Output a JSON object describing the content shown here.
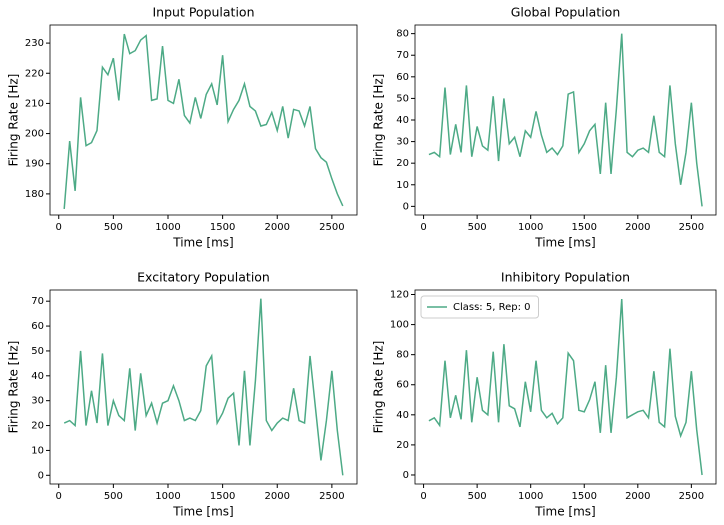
{
  "chart_data": [
    {
      "type": "line",
      "title": "Input Population",
      "xlabel": "Time [ms]",
      "ylabel": "Firing Rate [Hz]",
      "color": "#4daa86",
      "x": [
        50,
        100,
        150,
        200,
        250,
        300,
        350,
        400,
        450,
        500,
        550,
        600,
        650,
        700,
        750,
        800,
        850,
        900,
        950,
        1000,
        1050,
        1100,
        1150,
        1200,
        1250,
        1300,
        1350,
        1400,
        1450,
        1500,
        1550,
        1600,
        1650,
        1700,
        1750,
        1800,
        1850,
        1900,
        1950,
        2000,
        2050,
        2100,
        2150,
        2200,
        2250,
        2300,
        2350,
        2400,
        2450,
        2500,
        2550,
        2600
      ],
      "values": [
        175,
        197.5,
        181,
        212,
        196,
        197,
        201,
        222,
        219.5,
        225,
        211,
        233,
        226.5,
        227.5,
        231,
        232.5,
        211,
        211.5,
        229,
        211,
        210,
        218,
        206,
        203.5,
        212,
        205,
        213,
        216.5,
        209.5,
        226,
        204,
        208,
        211,
        216.5,
        209,
        207.5,
        202.5,
        203,
        207,
        201,
        209,
        198.5,
        208,
        207.5,
        202.5,
        209,
        195,
        192,
        190.5,
        185,
        180,
        176
      ],
      "xlim": [
        -80,
        2730
      ],
      "xticks": [
        0,
        500,
        1000,
        1500,
        2000,
        2500
      ],
      "ylim": [
        173,
        236
      ],
      "yticks": [
        180,
        190,
        200,
        210,
        220,
        230
      ]
    },
    {
      "type": "line",
      "title": "Global Population",
      "xlabel": "Time [ms]",
      "ylabel": "Firing Rate [Hz]",
      "color": "#4daa86",
      "x": [
        50,
        100,
        150,
        200,
        250,
        300,
        350,
        400,
        450,
        500,
        550,
        600,
        650,
        700,
        750,
        800,
        850,
        900,
        950,
        1000,
        1050,
        1100,
        1150,
        1200,
        1250,
        1300,
        1350,
        1400,
        1450,
        1500,
        1550,
        1600,
        1650,
        1700,
        1750,
        1800,
        1850,
        1900,
        1950,
        2000,
        2050,
        2100,
        2150,
        2200,
        2250,
        2300,
        2350,
        2400,
        2450,
        2500,
        2550,
        2600
      ],
      "values": [
        24,
        25,
        23,
        55,
        24,
        38,
        25,
        56,
        23,
        37,
        28,
        26,
        51,
        21,
        50,
        29,
        32,
        23,
        35,
        32,
        44,
        33,
        25,
        27,
        24,
        28,
        52,
        53,
        25,
        29,
        35,
        38,
        15,
        48,
        15,
        45,
        80,
        25,
        23,
        26,
        27,
        25,
        42,
        25,
        23,
        56,
        29,
        10,
        25,
        48,
        20,
        0
      ],
      "xlim": [
        -80,
        2730
      ],
      "xticks": [
        0,
        500,
        1000,
        1500,
        2000,
        2500
      ],
      "ylim": [
        -4,
        84
      ],
      "yticks": [
        0,
        10,
        20,
        30,
        40,
        50,
        60,
        70,
        80
      ]
    },
    {
      "type": "line",
      "title": "Excitatory Population",
      "xlabel": "Time [ms]",
      "ylabel": "Firing Rate [Hz]",
      "color": "#4daa86",
      "x": [
        50,
        100,
        150,
        200,
        250,
        300,
        350,
        400,
        450,
        500,
        550,
        600,
        650,
        700,
        750,
        800,
        850,
        900,
        950,
        1000,
        1050,
        1100,
        1150,
        1200,
        1250,
        1300,
        1350,
        1400,
        1450,
        1500,
        1550,
        1600,
        1650,
        1700,
        1750,
        1800,
        1850,
        1900,
        1950,
        2000,
        2050,
        2100,
        2150,
        2200,
        2250,
        2300,
        2350,
        2400,
        2450,
        2500,
        2550,
        2600
      ],
      "values": [
        21,
        22,
        20,
        50,
        20,
        34,
        21,
        49,
        20,
        30,
        24,
        22,
        43,
        18,
        41,
        24,
        29,
        21,
        29,
        30,
        36,
        30,
        22,
        23,
        22,
        26,
        44,
        48,
        21,
        25,
        31,
        33,
        12,
        42,
        12,
        38,
        71,
        22,
        18,
        21,
        23,
        22,
        35,
        22,
        21,
        48,
        27,
        6,
        22,
        42,
        18,
        0
      ],
      "xlim": [
        -80,
        2730
      ],
      "xticks": [
        0,
        500,
        1000,
        1500,
        2000,
        2500
      ],
      "ylim": [
        -3.5,
        74.5
      ],
      "yticks": [
        0,
        10,
        20,
        30,
        40,
        50,
        60,
        70
      ]
    },
    {
      "type": "line",
      "title": "Inhibitory Population",
      "xlabel": "Time [ms]",
      "ylabel": "Firing Rate [Hz]",
      "legend": "upper left",
      "x": [
        50,
        100,
        150,
        200,
        250,
        300,
        350,
        400,
        450,
        500,
        550,
        600,
        650,
        700,
        750,
        800,
        850,
        900,
        950,
        1000,
        1050,
        1100,
        1150,
        1200,
        1250,
        1300,
        1350,
        1400,
        1450,
        1500,
        1550,
        1600,
        1650,
        1700,
        1750,
        1800,
        1850,
        1900,
        1950,
        2000,
        2050,
        2100,
        2150,
        2200,
        2250,
        2300,
        2350,
        2400,
        2450,
        2500,
        2550,
        2600
      ],
      "series": [
        {
          "name": "Class: 5, Rep: 0",
          "color": "#4daa86",
          "values": [
            36,
            38,
            33,
            76,
            38,
            53,
            37,
            83,
            35,
            65,
            43,
            40,
            82,
            35,
            87,
            46,
            44,
            32,
            62,
            42,
            76,
            43,
            38,
            41,
            34,
            38,
            81,
            76,
            43,
            42,
            50,
            62,
            28,
            73,
            28,
            65,
            117,
            38,
            40,
            42,
            43,
            38,
            69,
            35,
            32,
            84,
            39,
            26,
            35,
            69,
            30,
            0
          ]
        }
      ],
      "xlim": [
        -80,
        2730
      ],
      "xticks": [
        0,
        500,
        1000,
        1500,
        2000,
        2500
      ],
      "ylim": [
        -6,
        123
      ],
      "yticks": [
        0,
        20,
        40,
        60,
        80,
        100,
        120
      ]
    }
  ]
}
